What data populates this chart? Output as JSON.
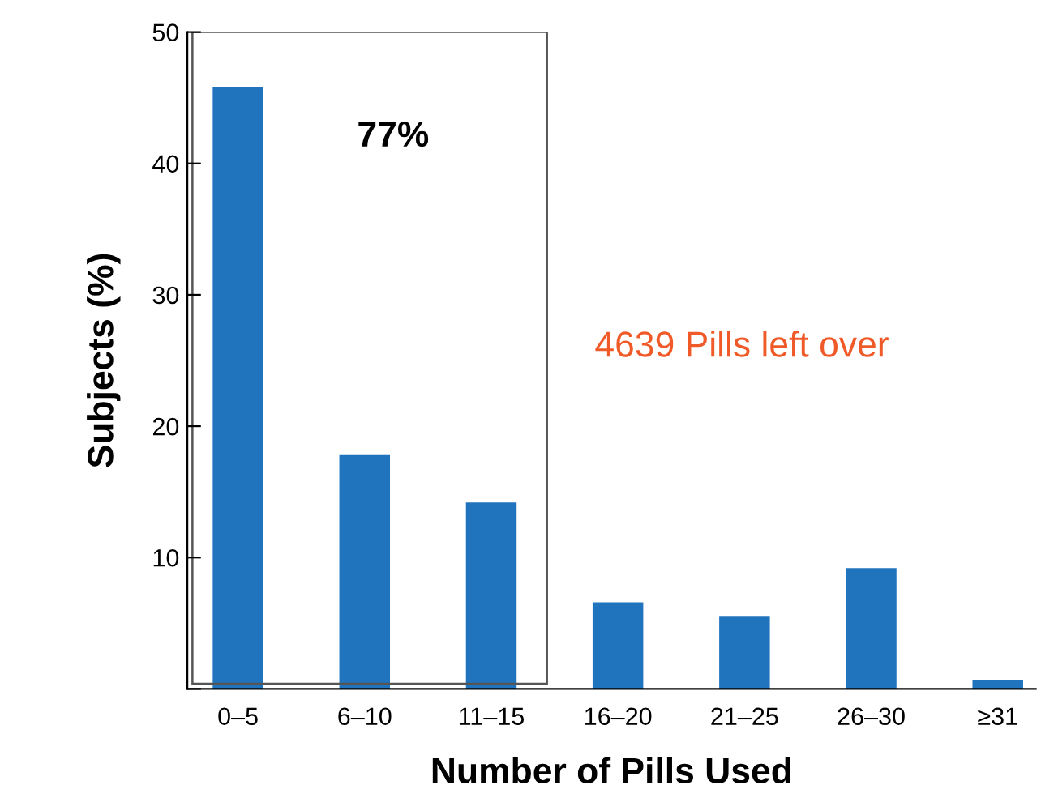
{
  "chart_data": {
    "type": "bar",
    "categories": [
      "0–5",
      "6–10",
      "11–15",
      "16–20",
      "21–25",
      "26–30",
      "≥31"
    ],
    "values": [
      45.8,
      17.8,
      14.2,
      6.6,
      5.5,
      9.2,
      0.7
    ],
    "color": "#1f74bd",
    "xlabel": "Number of Pills Used",
    "ylabel": "Subjects (%)",
    "ylim": [
      0,
      50
    ],
    "yticks": [
      {
        "value": 0,
        "label": null
      },
      10,
      20,
      30,
      40,
      50
    ],
    "annotations": [
      "77%",
      "4639 Pills left over"
    ],
    "grid": false,
    "legend": false
  }
}
